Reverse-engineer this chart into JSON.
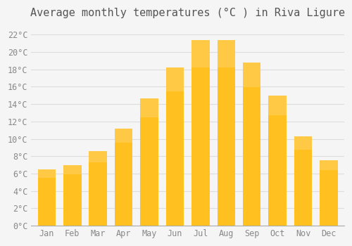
{
  "months": [
    "Jan",
    "Feb",
    "Mar",
    "Apr",
    "May",
    "Jun",
    "Jul",
    "Aug",
    "Sep",
    "Oct",
    "Nov",
    "Dec"
  ],
  "temperatures": [
    6.5,
    7.0,
    8.6,
    11.2,
    14.7,
    18.2,
    21.4,
    21.4,
    18.8,
    15.0,
    10.3,
    7.5
  ],
  "bar_color_main": "#FFC020",
  "bar_color_bottom": "#FFB000",
  "title": "Average monthly temperatures (°C ) in Riva Ligure",
  "ylabel": "",
  "xlabel": "",
  "ylim": [
    0,
    23
  ],
  "ytick_step": 2,
  "background_color": "#f5f5f5",
  "grid_color": "#dddddd",
  "title_fontsize": 11,
  "tick_fontsize": 8.5,
  "font_family": "monospace"
}
